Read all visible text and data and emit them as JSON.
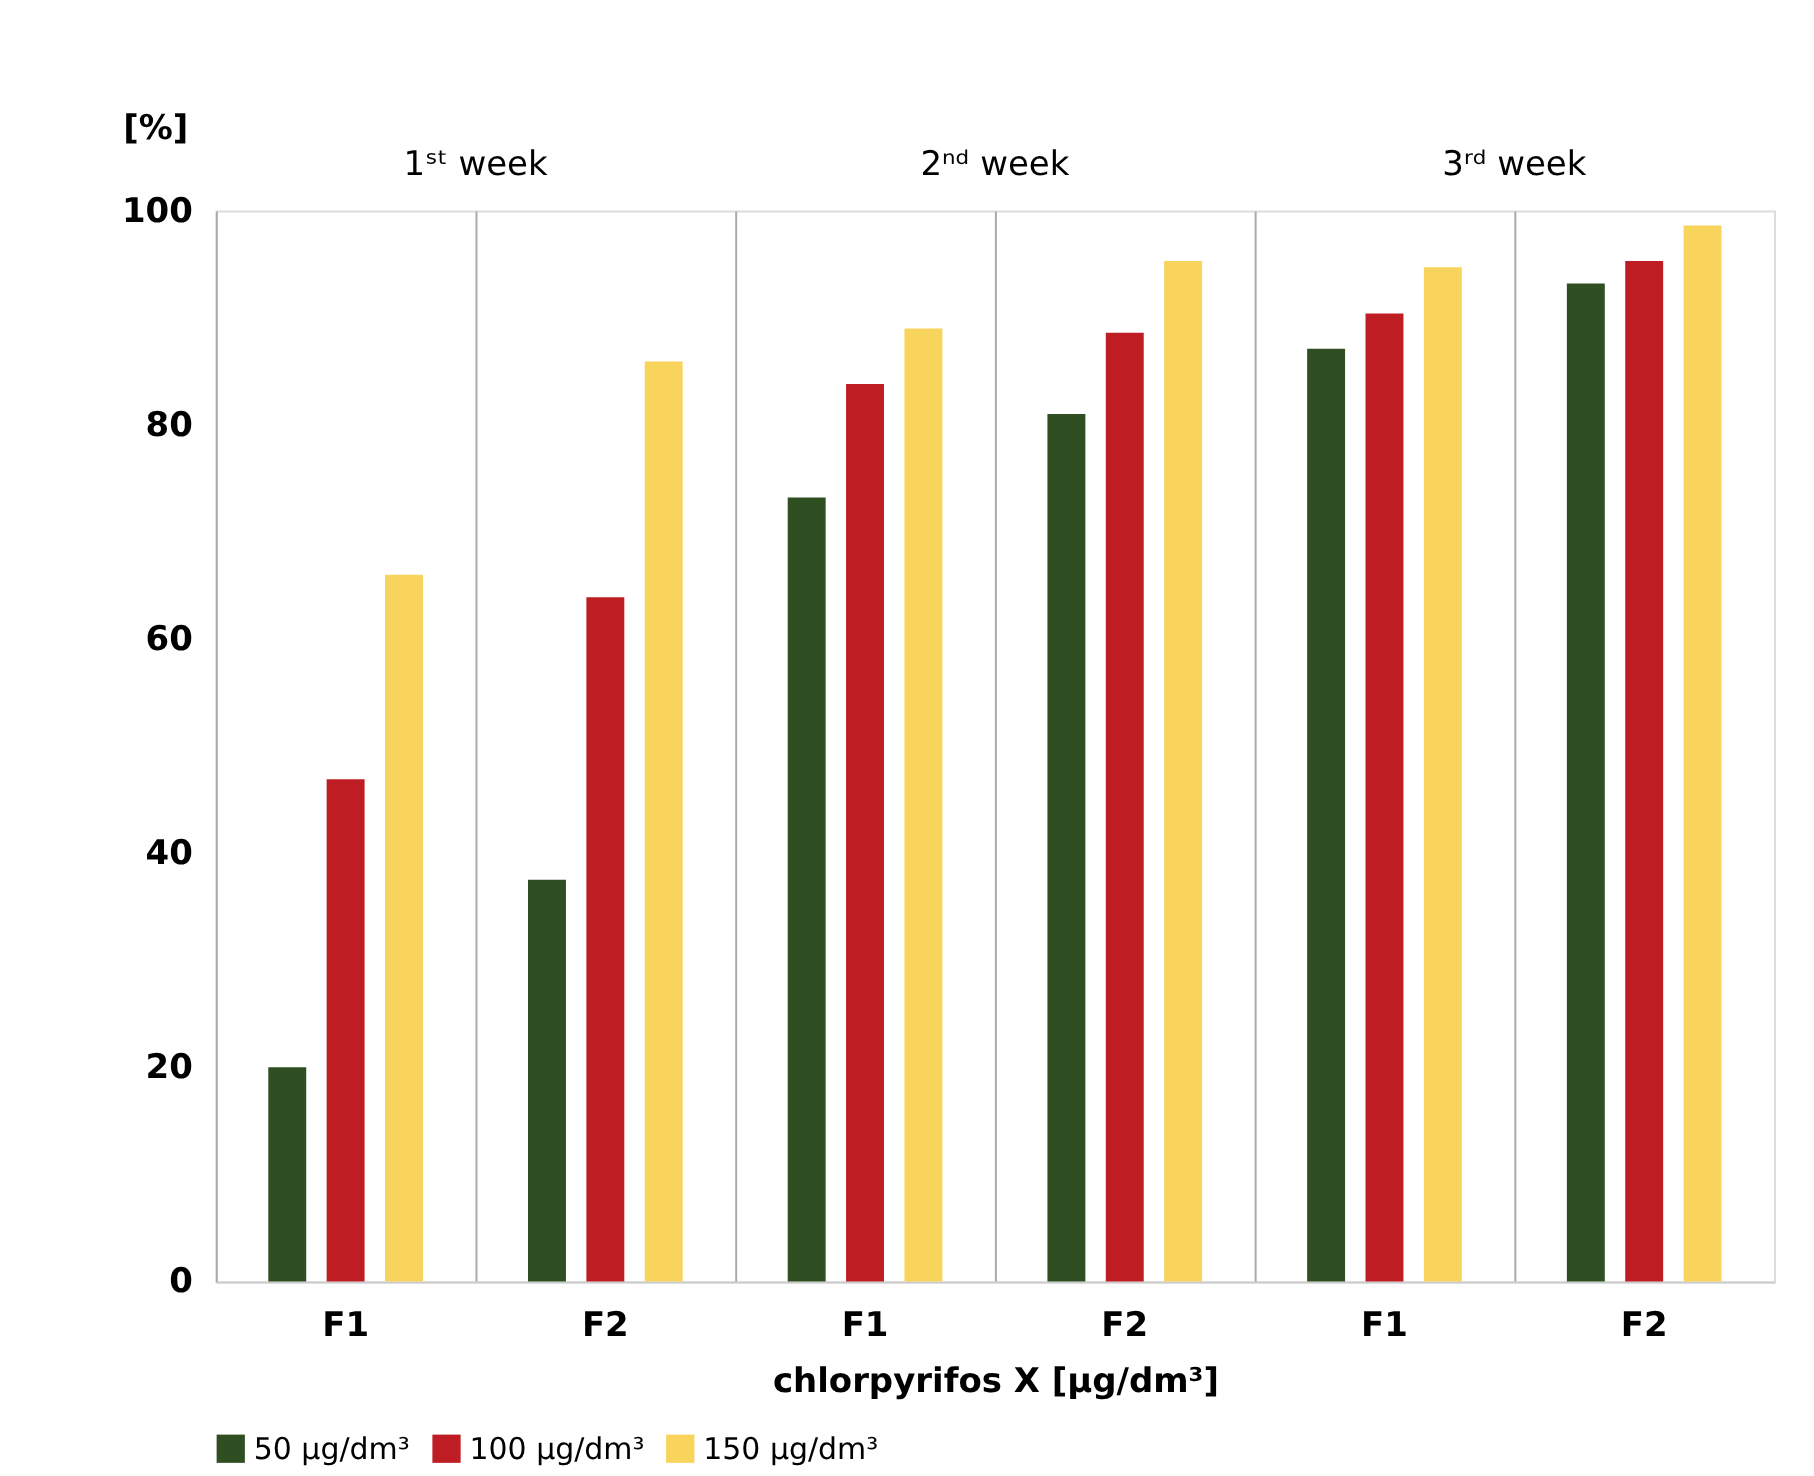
{
  "chart_data": {
    "type": "bar",
    "xlabel": "chlorpyrifos X [μg/dm³]",
    "ylabel": "[%]",
    "categories": [
      "F1",
      "F2",
      "F1",
      "F2",
      "F1",
      "F2"
    ],
    "annotations": [
      "1ˢᵗ week",
      "2ⁿᵈ week",
      "3ʳᵈ week"
    ],
    "series": [
      {
        "name": "50 μg/dm³",
        "color": "#2f4f22",
        "values": [
          20.0,
          37.5,
          73.2,
          81.0,
          87.1,
          93.2
        ]
      },
      {
        "name": "100 μg/dm³",
        "color": "#be1e23",
        "values": [
          46.9,
          63.9,
          83.8,
          88.6,
          90.4,
          95.3
        ]
      },
      {
        "name": "150 μg/dm³",
        "color": "#f9d45c",
        "values": [
          66.0,
          85.9,
          89.0,
          95.3,
          94.7,
          98.6
        ]
      }
    ],
    "ylim": [
      0,
      100
    ],
    "yticks": [
      0,
      20,
      40,
      60,
      80,
      100
    ],
    "grid": "x",
    "legend": "bottom"
  }
}
